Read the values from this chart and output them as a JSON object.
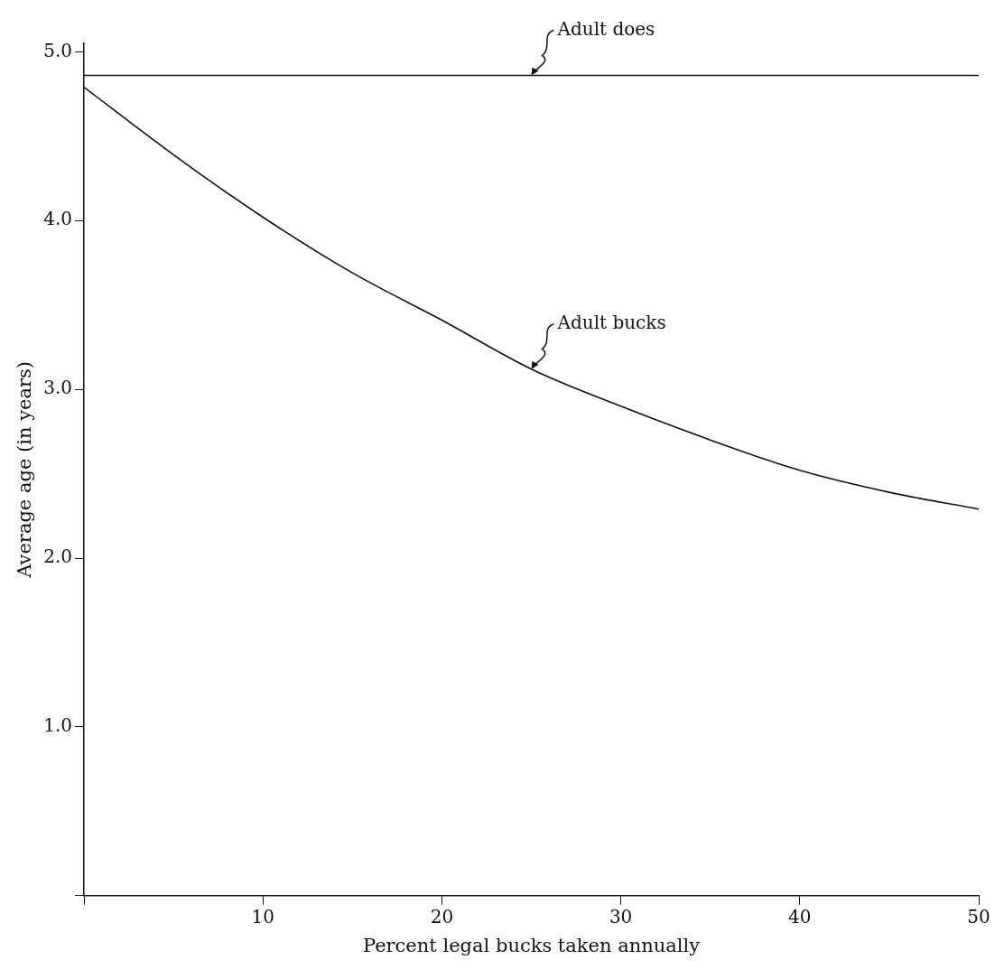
{
  "chart_data": {
    "type": "line",
    "xlabel": "Percent legal bucks taken annually",
    "ylabel": "Average age (in years)",
    "xlim": [
      0,
      50
    ],
    "xticks": [
      {
        "value": 0,
        "label": null
      },
      10,
      20,
      30,
      40,
      50
    ],
    "ylim": [
      0,
      5.05
    ],
    "yticks": [
      {
        "value": 0,
        "label": null
      },
      {
        "value": 1,
        "label": "1.0"
      },
      {
        "value": 2,
        "label": "2.0"
      },
      {
        "value": 3,
        "label": "3.0"
      },
      {
        "value": 4,
        "label": "4.0"
      },
      {
        "value": 5,
        "label": "5.0"
      }
    ],
    "grid": false,
    "legend": false,
    "marker": "none",
    "line_style": "solid",
    "series": [
      {
        "name": "Adult does",
        "color": "#111111",
        "x": [
          0,
          50
        ],
        "values": [
          4.86,
          4.86
        ]
      },
      {
        "name": "Adult bucks",
        "color": "#111111",
        "x": [
          0,
          5,
          10,
          15,
          20,
          25,
          30,
          35,
          40,
          45,
          50
        ],
        "values": [
          4.79,
          4.39,
          4.02,
          3.69,
          3.41,
          3.12,
          2.9,
          2.7,
          2.52,
          2.39,
          2.29
        ]
      }
    ]
  }
}
